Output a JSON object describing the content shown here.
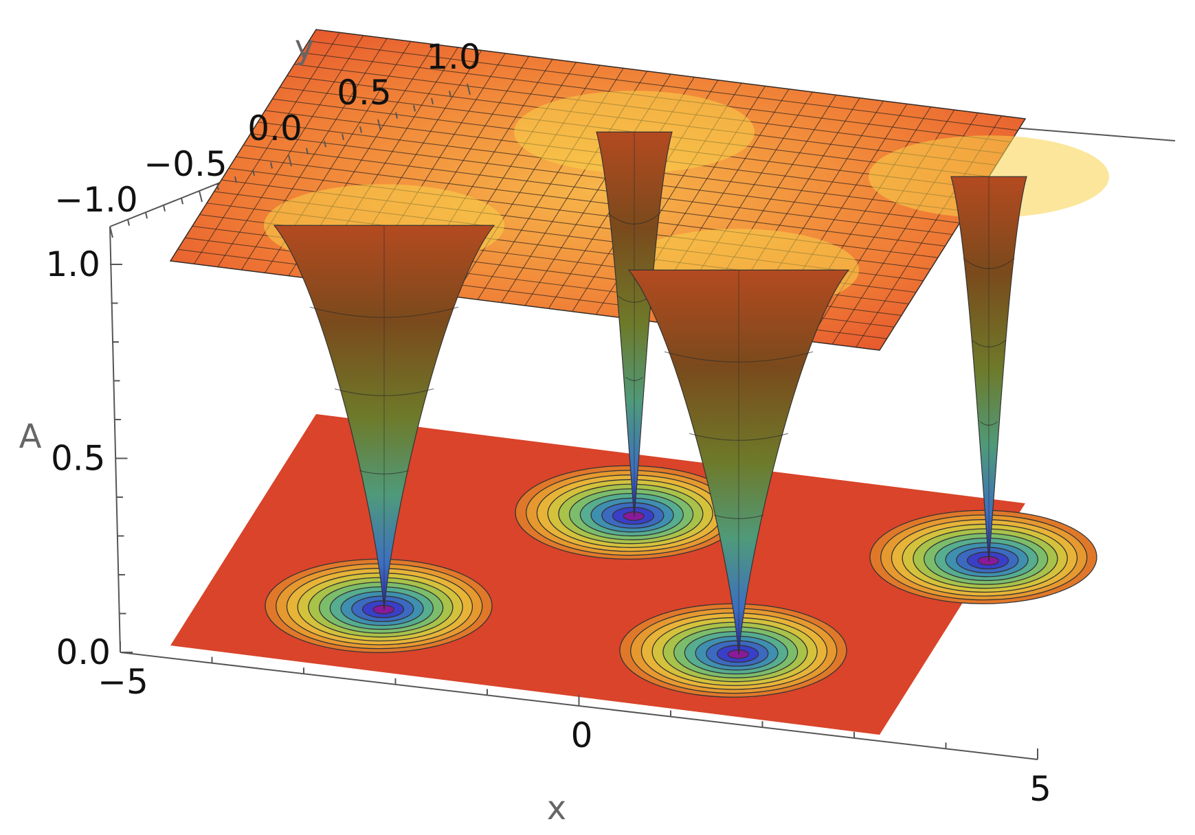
{
  "chart_data": {
    "type": "surface3d",
    "function": "surface A(x,y) with four conical minima at A=0 and plateau at A=1, plus a contour projection on the A=0 base plane",
    "x": {
      "label": "x",
      "range": [
        -5,
        5
      ],
      "ticks": [
        "-5",
        "0",
        "5"
      ],
      "tick_values": [
        -5,
        0,
        5
      ]
    },
    "y": {
      "label": "y",
      "range": [
        -1,
        1
      ],
      "ticks": [
        "-1.0",
        "-0.5",
        "0.0",
        "0.5",
        "1.0"
      ],
      "tick_values": [
        -1,
        -0.5,
        0,
        0.5,
        1
      ]
    },
    "z": {
      "label": "A",
      "range": [
        0,
        1
      ],
      "ticks": [
        "0.0",
        "0.5",
        "1.0"
      ],
      "tick_values": [
        0,
        0.5,
        1
      ]
    },
    "minima": [
      {
        "x": -2.5,
        "y": -0.5,
        "A": 0
      },
      {
        "x": 2.5,
        "y": -0.5,
        "A": 0
      },
      {
        "x": 0,
        "y": 0.5,
        "A": 0
      },
      {
        "x": 5,
        "y": 0.5,
        "A": 0
      }
    ],
    "plateau_value": 1.0,
    "contour_levels": 10,
    "colors": {
      "plateau": "#e8512a",
      "highlight": "#f7d14a",
      "mid": "#8aaa3a",
      "low": "#3f8fb0",
      "bottom": "#3a2fc0",
      "contour_base": "#d9442a"
    }
  }
}
